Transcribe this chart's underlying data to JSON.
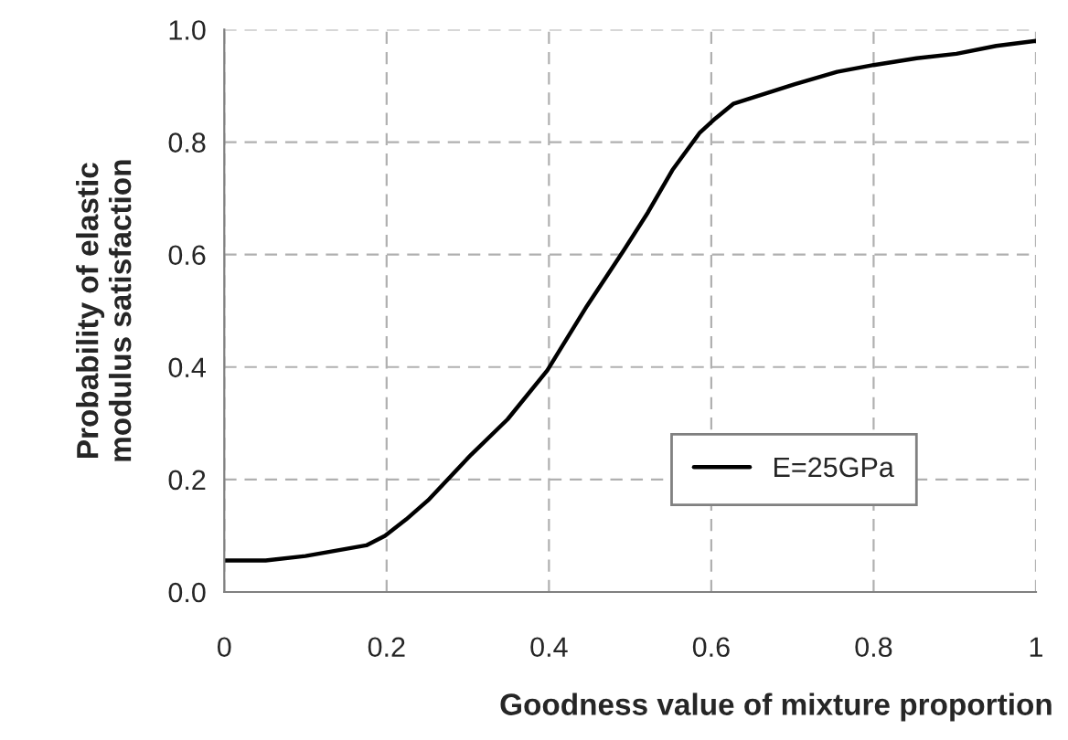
{
  "chart_data": {
    "type": "line",
    "xlabel": "Goodness value of mixture proportion",
    "ylabel": "Probability of elastic\nmodulus satisfaction",
    "x": [
      0,
      0.051,
      0.1,
      0.175,
      0.198,
      0.224,
      0.251,
      0.304,
      0.349,
      0.398,
      0.447,
      0.492,
      0.522,
      0.552,
      0.586,
      0.605,
      0.627,
      0.703,
      0.755,
      0.8,
      0.853,
      0.902,
      0.951,
      1.0
    ],
    "series": [
      {
        "name": "E=25GPa",
        "color": "#000000",
        "values": [
          0.056,
          0.056,
          0.064,
          0.083,
          0.1,
          0.129,
          0.163,
          0.244,
          0.307,
          0.394,
          0.509,
          0.607,
          0.675,
          0.75,
          0.817,
          0.842,
          0.868,
          0.903,
          0.925,
          0.937,
          0.949,
          0.957,
          0.971,
          0.98
        ]
      }
    ],
    "xlim": [
      0,
      1
    ],
    "ylim": [
      0,
      1
    ],
    "xticks": [
      0,
      0.2,
      0.4,
      0.6,
      0.8,
      1
    ],
    "yticks": [
      {
        "value": 0,
        "label": "0.0"
      },
      {
        "value": 0.2,
        "label": "0.2"
      },
      {
        "value": 0.4,
        "label": "0.4"
      },
      {
        "value": 0.6,
        "label": "0.6"
      },
      {
        "value": 0.8,
        "label": "0.8"
      },
      {
        "value": 1,
        "label": "1.0"
      }
    ],
    "grid": true,
    "legend": "bottom right",
    "marker": "none",
    "line_style": "solid"
  }
}
